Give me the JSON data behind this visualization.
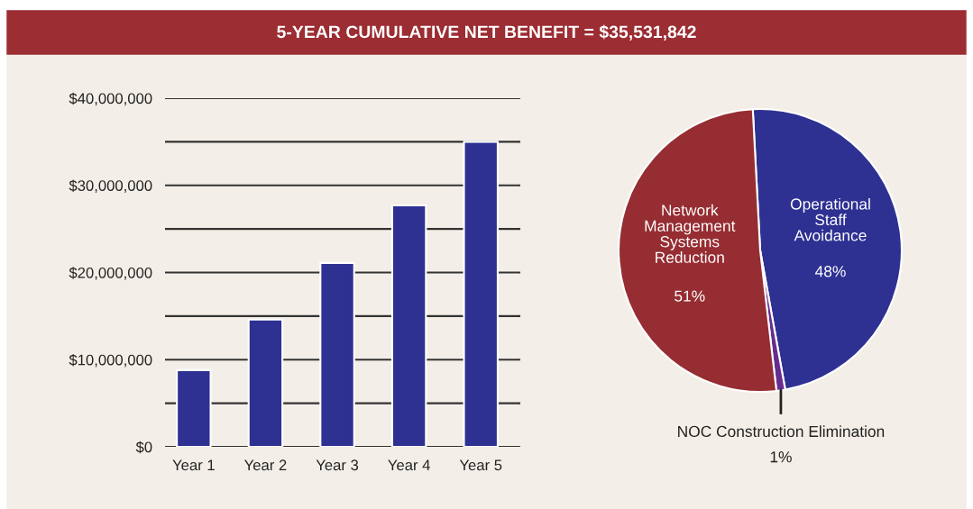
{
  "chart_data": [
    {
      "type": "bar",
      "title": "5-YEAR CUMULATIVE NET BENEFIT = $35,531,842",
      "categories": [
        "Year 1",
        "Year 2",
        "Year 3",
        "Year 4",
        "Year 5"
      ],
      "values": [
        8800000,
        14600000,
        21100000,
        27700000,
        35000000
      ],
      "color": "#2e3192",
      "ylim": [
        0,
        40000000
      ],
      "yticks": [
        {
          "value": 0,
          "label": "$0"
        },
        {
          "value": 5000000,
          "label": null
        },
        {
          "value": 10000000,
          "label": "$10,000,000"
        },
        {
          "value": 15000000,
          "label": null
        },
        {
          "value": 20000000,
          "label": "$20,000,000"
        },
        {
          "value": 25000000,
          "label": null
        },
        {
          "value": 30000000,
          "label": "$30,000,000"
        },
        {
          "value": 35000000,
          "label": null
        },
        {
          "value": 40000000,
          "label": "$40,000,000"
        }
      ],
      "grid": "y",
      "legend": false
    },
    {
      "type": "pie",
      "categories": [
        "Operational\nStaff\nAvoidance",
        "NOC Construction Elimination",
        "Network\nManagement\nSystems\nReduction"
      ],
      "values": [
        48,
        1,
        51
      ],
      "colors": [
        "#2e3192",
        "#662d91",
        "#962d32"
      ],
      "value_labels": [
        "48%",
        "1%",
        "51%"
      ],
      "legend": false
    }
  ]
}
